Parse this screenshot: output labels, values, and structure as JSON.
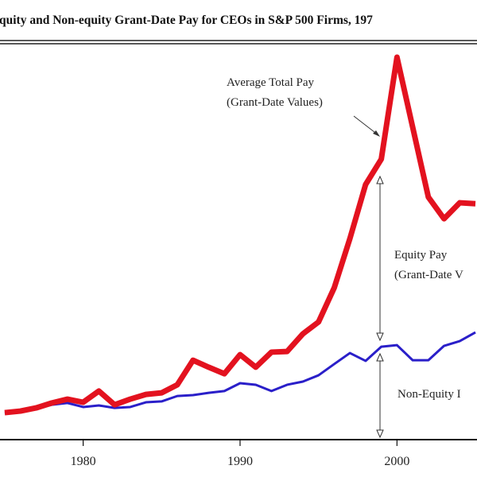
{
  "chart_data": {
    "type": "line",
    "title": "quity and Non-equity Grant-Date Pay for CEOs in S&P 500 Firms, 197",
    "xlabel": "",
    "ylabel": "",
    "xlim": [
      1974.7,
      2005.1
    ],
    "ylim": [
      0,
      17
    ],
    "x_ticks": [
      1980,
      1990,
      2000
    ],
    "x_tick_labels": [
      "1980",
      "1990",
      "2000"
    ],
    "grid": false,
    "x": [
      1975,
      1976,
      1977,
      1978,
      1979,
      1980,
      1981,
      1982,
      1983,
      1984,
      1985,
      1986,
      1987,
      1988,
      1989,
      1990,
      1991,
      1992,
      1993,
      1994,
      1995,
      1996,
      1997,
      1998,
      1999,
      2000,
      2001,
      2002,
      2003,
      2004,
      2005
    ],
    "series": [
      {
        "color": "#e3121f",
        "values": [
          1.2,
          1.27,
          1.41,
          1.63,
          1.8,
          1.66,
          2.16,
          1.55,
          1.8,
          2.01,
          2.08,
          2.44,
          3.53,
          3.22,
          2.93,
          3.78,
          3.22,
          3.89,
          3.92,
          4.7,
          5.23,
          6.75,
          8.94,
          11.34,
          12.47,
          17.0,
          13.89,
          10.78,
          9.82,
          10.53,
          10.49
        ]
      },
      {
        "color": "#2a1fc9",
        "values": [
          1.17,
          1.24,
          1.38,
          1.55,
          1.63,
          1.45,
          1.52,
          1.41,
          1.45,
          1.66,
          1.7,
          1.94,
          1.98,
          2.08,
          2.16,
          2.51,
          2.44,
          2.16,
          2.44,
          2.58,
          2.86,
          3.36,
          3.85,
          3.5,
          4.13,
          4.2,
          3.53,
          3.53,
          4.17,
          4.38,
          4.77
        ]
      }
    ],
    "annotations": {
      "total_line1": "Average Total Pay",
      "total_line2": "(Grant-Date Values)",
      "equity_line1": "Equity Pay",
      "equity_line2": "(Grant-Date V",
      "nonequity": "Non-Equity I"
    }
  }
}
